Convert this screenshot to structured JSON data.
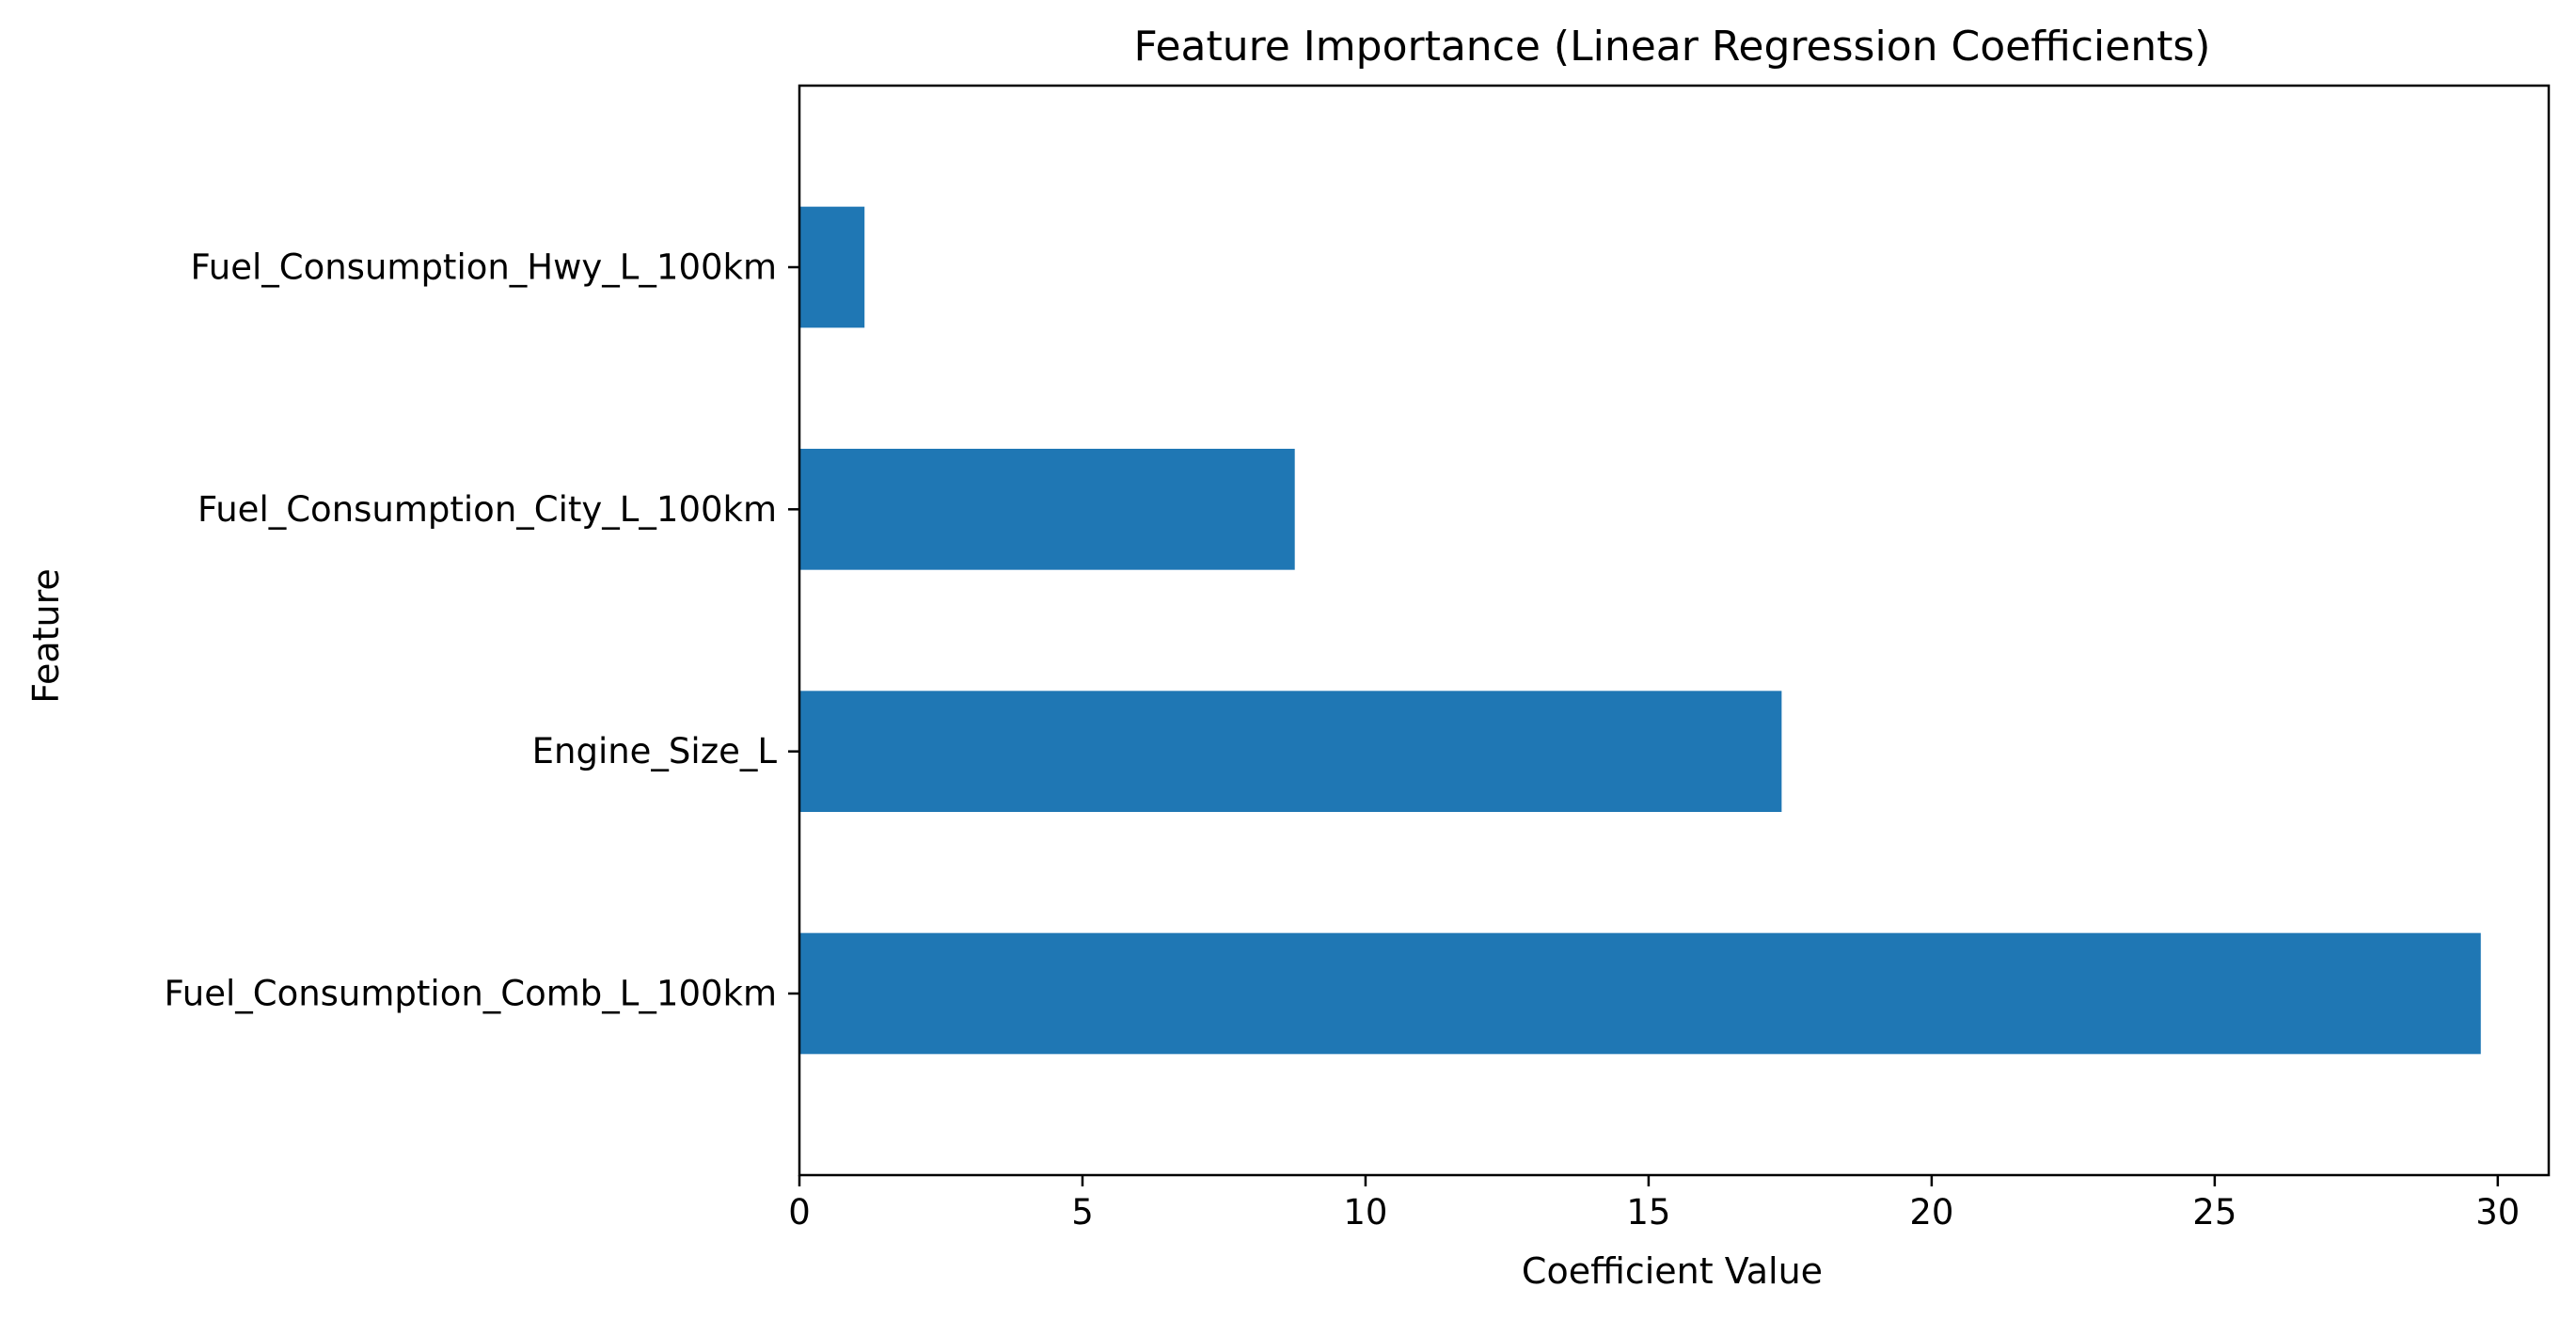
{
  "chart_data": {
    "type": "bar",
    "orientation": "horizontal",
    "title": "Feature Importance (Linear Regression Coefficients)",
    "xlabel": "Coefficient Value",
    "ylabel": "Feature",
    "categories": [
      "Fuel_Consumption_Comb_L_100km",
      "Engine_Size_L",
      "Fuel_Consumption_City_L_100km",
      "Fuel_Consumption_Hwy_L_100km"
    ],
    "values": [
      29.7,
      17.35,
      8.75,
      1.15
    ],
    "xlim": [
      0,
      30.9
    ],
    "xticks": [
      0,
      5,
      10,
      15,
      20,
      25,
      30
    ],
    "xtick_labels": [
      "0",
      "5",
      "10",
      "15",
      "20",
      "25",
      "30"
    ],
    "bar_color": "#1f77b4",
    "grid": false,
    "legend": "none"
  }
}
